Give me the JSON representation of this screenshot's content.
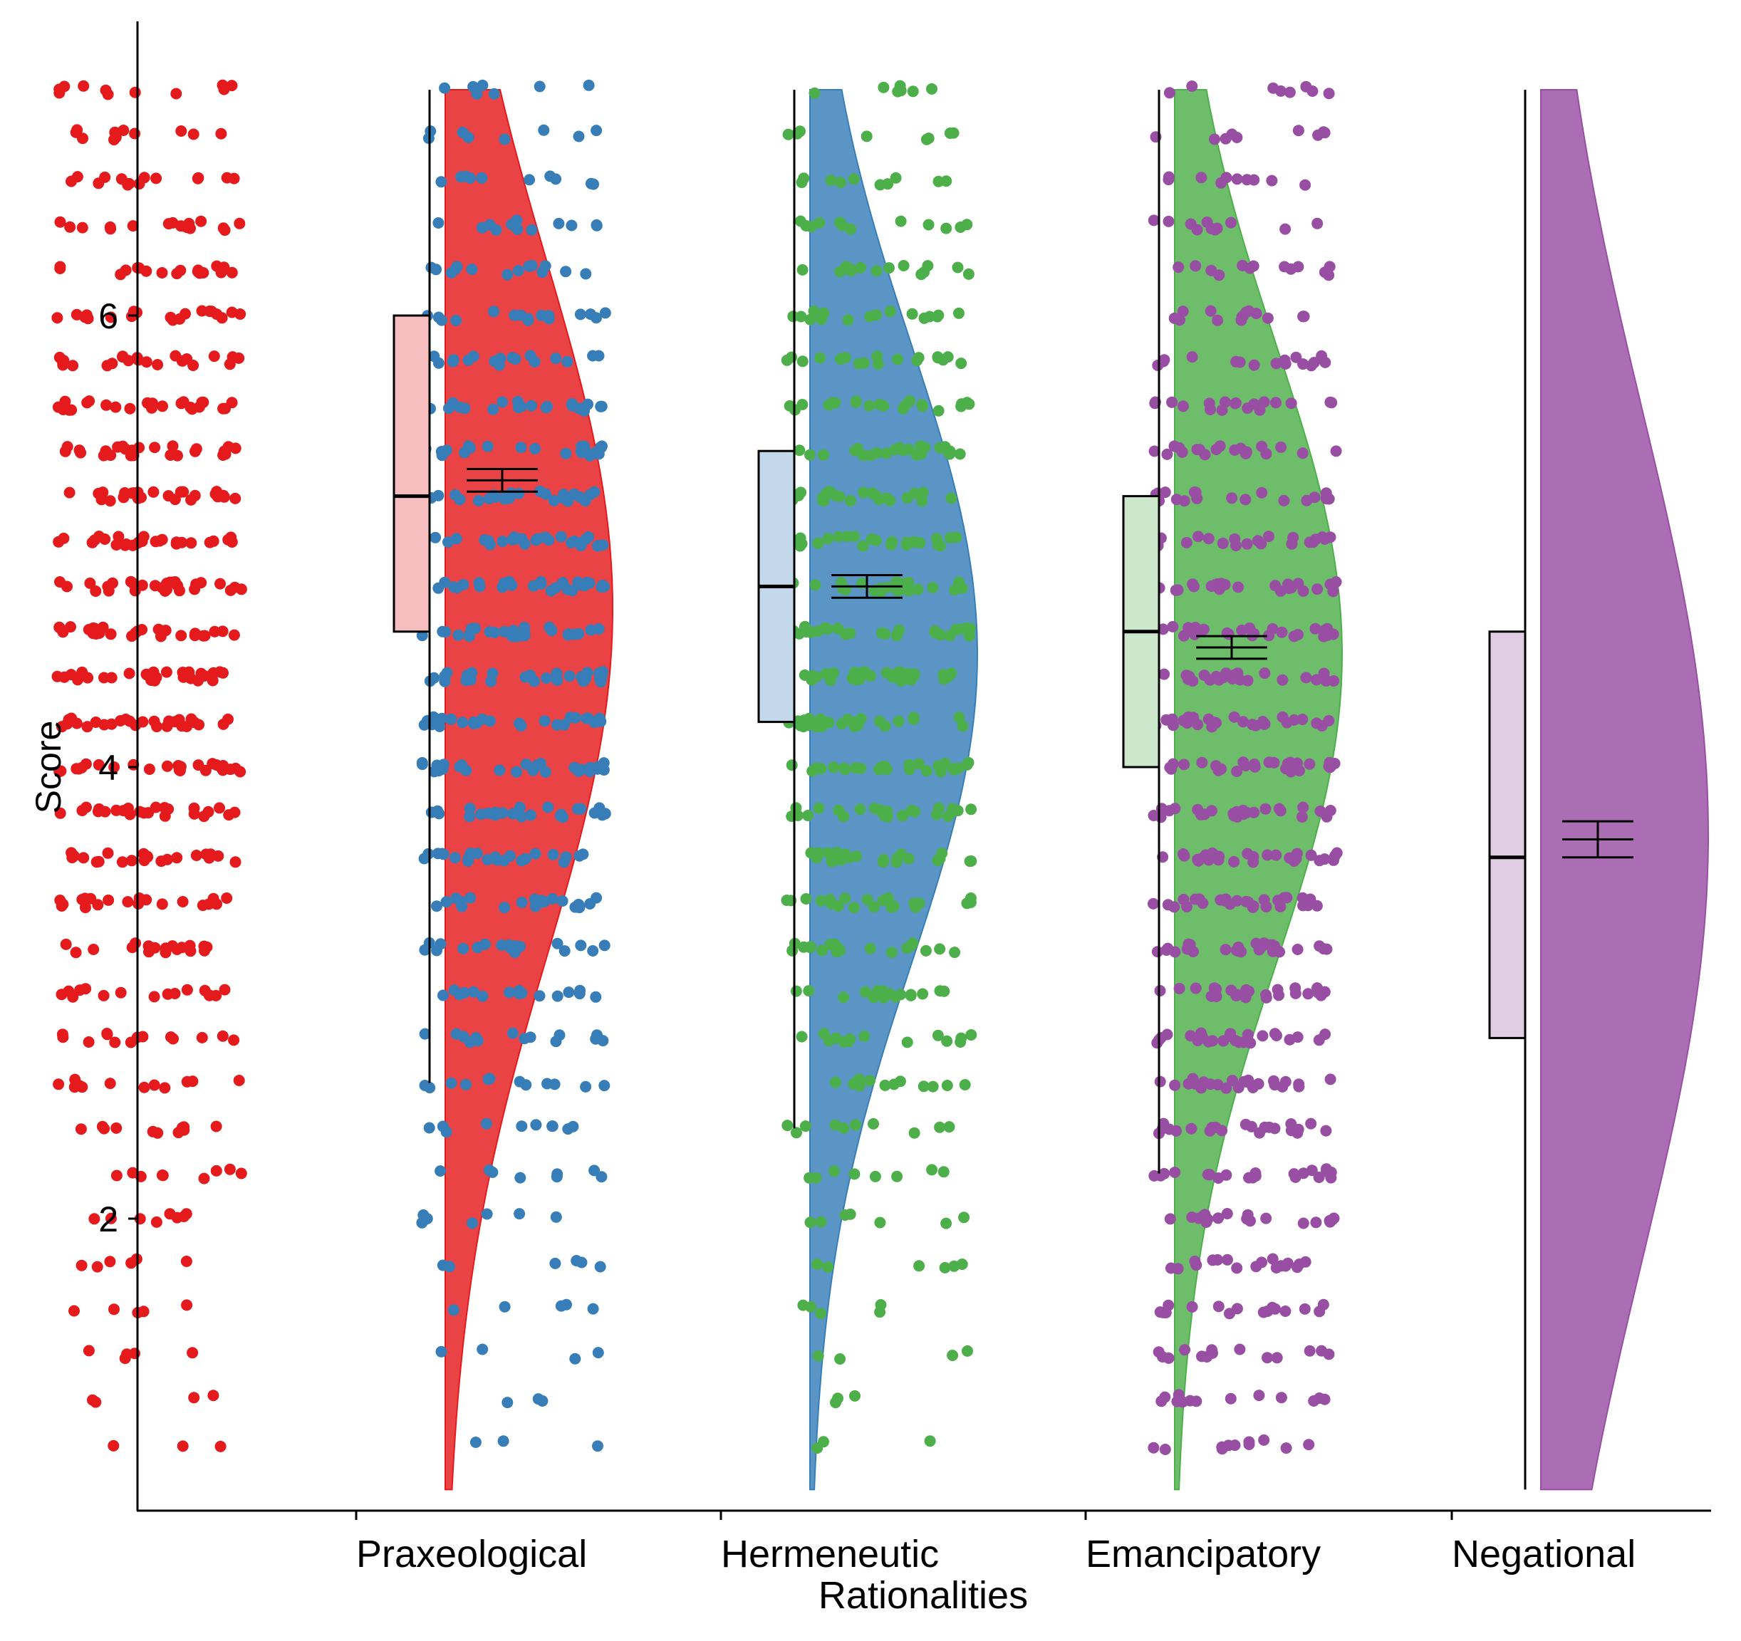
{
  "chart_data": {
    "type": "raincloud",
    "xlabel": "Rationalities",
    "ylabel": "Score",
    "ylim": [
      0.7,
      7.35
    ],
    "yticks": [
      2,
      4,
      6
    ],
    "ytick_labels": [
      "2",
      "4",
      "6"
    ],
    "categories": [
      "Praxeological",
      "Hermeneutic",
      "Emancipatory",
      "Negational"
    ],
    "series": [
      {
        "name": "Praxeological",
        "color": "#E41A1C",
        "box_fill": "#F6BEBF",
        "box": {
          "whisker_low": 2.6,
          "q1": 4.6,
          "median": 5.2,
          "q3": 6.0,
          "whisker_high": 7.0
        },
        "mean": 5.27,
        "ci": [
          5.22,
          5.32
        ],
        "density": {
          "min": 0.8,
          "max": 7.0,
          "peak": 4.7
        }
      },
      {
        "name": "Hermeneutic",
        "color": "#377EB8",
        "box_fill": "#C3D8EA",
        "box": {
          "whisker_low": 2.4,
          "q1": 4.2,
          "median": 4.8,
          "q3": 5.4,
          "whisker_high": 7.0
        },
        "mean": 4.8,
        "ci": [
          4.75,
          4.85
        ],
        "density": {
          "min": 0.8,
          "max": 7.0,
          "peak": 4.5
        }
      },
      {
        "name": "Emancipatory",
        "color": "#4DAF4A",
        "box_fill": "#CCE7CB",
        "box": {
          "whisker_low": 2.2,
          "q1": 4.0,
          "median": 4.6,
          "q3": 5.2,
          "whisker_high": 7.0
        },
        "mean": 4.53,
        "ci": [
          4.48,
          4.58
        ],
        "density": {
          "min": 0.8,
          "max": 7.0,
          "peak": 4.5
        }
      },
      {
        "name": "Negational",
        "color": "#984EA3",
        "box_fill": "#E0CCE3",
        "box": {
          "whisker_low": 0.8,
          "q1": 2.8,
          "median": 3.6,
          "q3": 4.6,
          "whisker_high": 7.0
        },
        "mean": 3.68,
        "ci": [
          3.6,
          3.76
        ],
        "density": {
          "min": 0.8,
          "max": 7.0,
          "peak": 3.7
        }
      }
    ]
  }
}
